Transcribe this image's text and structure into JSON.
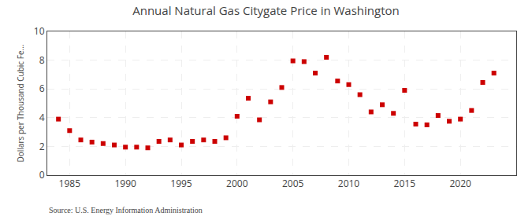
{
  "chart_data": {
    "type": "scatter",
    "title": "Annual Natural Gas Citygate Price in Washington",
    "ylabel": "Dollars per Thousand Cubic Fe...",
    "annotations": [
      "Source: U.S. Energy Information Administration"
    ],
    "x": [
      1984,
      1985,
      1986,
      1987,
      1988,
      1989,
      1990,
      1991,
      1992,
      1993,
      1994,
      1995,
      1996,
      1997,
      1998,
      1999,
      2000,
      2001,
      2002,
      2003,
      2004,
      2005,
      2006,
      2007,
      2008,
      2009,
      2010,
      2011,
      2012,
      2013,
      2014,
      2015,
      2016,
      2017,
      2018,
      2019,
      2020,
      2021,
      2022,
      2023
    ],
    "values": [
      3.9,
      3.1,
      2.45,
      2.3,
      2.2,
      2.1,
      1.95,
      1.95,
      1.9,
      2.35,
      2.45,
      2.1,
      2.35,
      2.45,
      2.35,
      2.6,
      4.1,
      5.35,
      3.85,
      5.1,
      6.1,
      7.95,
      7.9,
      7.1,
      8.2,
      6.55,
      6.3,
      5.6,
      4.4,
      4.9,
      4.3,
      5.9,
      3.55,
      3.5,
      4.15,
      3.75,
      3.9,
      4.5,
      6.45,
      7.1
    ],
    "color": "#cc0000",
    "marker": "square",
    "xlim": [
      1983,
      2025
    ],
    "ylim": [
      0,
      10
    ],
    "xticks": [
      1985,
      1990,
      1995,
      2000,
      2005,
      2010,
      2015,
      2020
    ],
    "yticks": [
      0,
      2,
      4,
      6,
      8,
      10
    ],
    "grid": true
  }
}
